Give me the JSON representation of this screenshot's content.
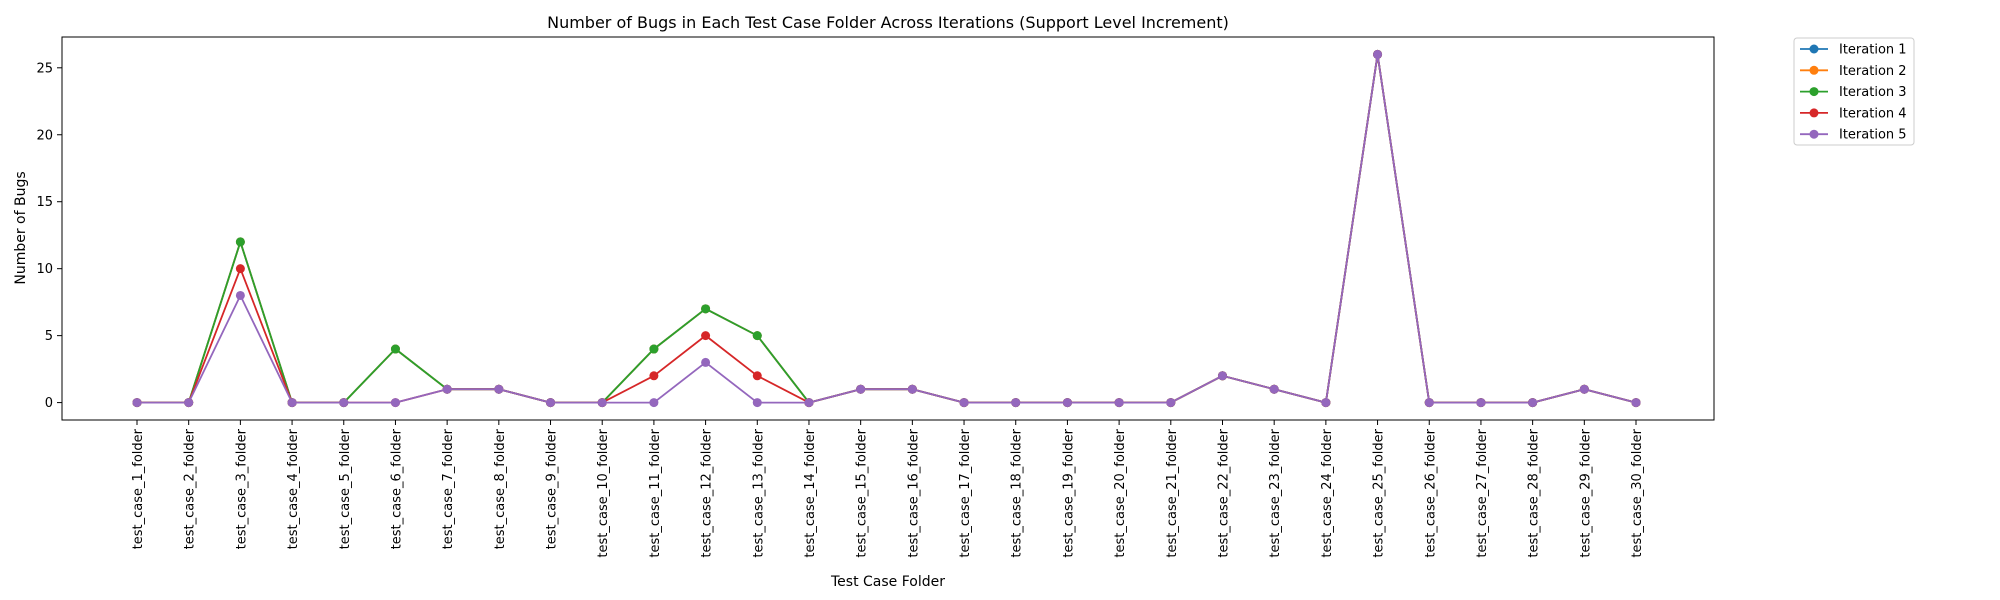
{
  "chart_data": {
    "type": "line",
    "title": "Number of Bugs in Each Test Case Folder Across Iterations (Support Level Increment)",
    "xlabel": "Test Case Folder",
    "ylabel": "Number of Bugs",
    "ylim": [
      -1.3,
      27.3
    ],
    "yticks": [
      0,
      5,
      10,
      15,
      20,
      25
    ],
    "grid": false,
    "legend_position": "outside-top-right",
    "categories": [
      "test_case_1_folder",
      "test_case_2_folder",
      "test_case_3_folder",
      "test_case_4_folder",
      "test_case_5_folder",
      "test_case_6_folder",
      "test_case_7_folder",
      "test_case_8_folder",
      "test_case_9_folder",
      "test_case_10_folder",
      "test_case_11_folder",
      "test_case_12_folder",
      "test_case_13_folder",
      "test_case_14_folder",
      "test_case_15_folder",
      "test_case_16_folder",
      "test_case_17_folder",
      "test_case_18_folder",
      "test_case_19_folder",
      "test_case_20_folder",
      "test_case_21_folder",
      "test_case_22_folder",
      "test_case_23_folder",
      "test_case_24_folder",
      "test_case_25_folder",
      "test_case_26_folder",
      "test_case_27_folder",
      "test_case_28_folder",
      "test_case_29_folder",
      "test_case_30_folder"
    ],
    "series": [
      {
        "name": "Iteration 1",
        "color": "#1f77b4",
        "values": [
          0,
          0,
          12,
          0,
          0,
          4,
          1,
          1,
          0,
          0,
          4,
          7,
          5,
          0,
          1,
          1,
          0,
          0,
          0,
          0,
          0,
          2,
          1,
          0,
          26,
          0,
          0,
          0,
          1,
          0
        ]
      },
      {
        "name": "Iteration 2",
        "color": "#ff7f0e",
        "values": [
          0,
          0,
          12,
          0,
          0,
          4,
          1,
          1,
          0,
          0,
          4,
          7,
          5,
          0,
          1,
          1,
          0,
          0,
          0,
          0,
          0,
          2,
          1,
          0,
          26,
          0,
          0,
          0,
          1,
          0
        ]
      },
      {
        "name": "Iteration 3",
        "color": "#2ca02c",
        "values": [
          0,
          0,
          12,
          0,
          0,
          4,
          1,
          1,
          0,
          0,
          4,
          7,
          5,
          0,
          1,
          1,
          0,
          0,
          0,
          0,
          0,
          2,
          1,
          0,
          26,
          0,
          0,
          0,
          1,
          0
        ]
      },
      {
        "name": "Iteration 4",
        "color": "#d62728",
        "values": [
          0,
          0,
          10,
          0,
          0,
          0,
          1,
          1,
          0,
          0,
          2,
          5,
          2,
          0,
          1,
          1,
          0,
          0,
          0,
          0,
          0,
          2,
          1,
          0,
          26,
          0,
          0,
          0,
          1,
          0
        ]
      },
      {
        "name": "Iteration 5",
        "color": "#9467bd",
        "values": [
          0,
          0,
          8,
          0,
          0,
          0,
          1,
          1,
          0,
          0,
          0,
          3,
          0,
          0,
          1,
          1,
          0,
          0,
          0,
          0,
          0,
          2,
          1,
          0,
          26,
          0,
          0,
          0,
          1,
          0
        ]
      }
    ]
  }
}
